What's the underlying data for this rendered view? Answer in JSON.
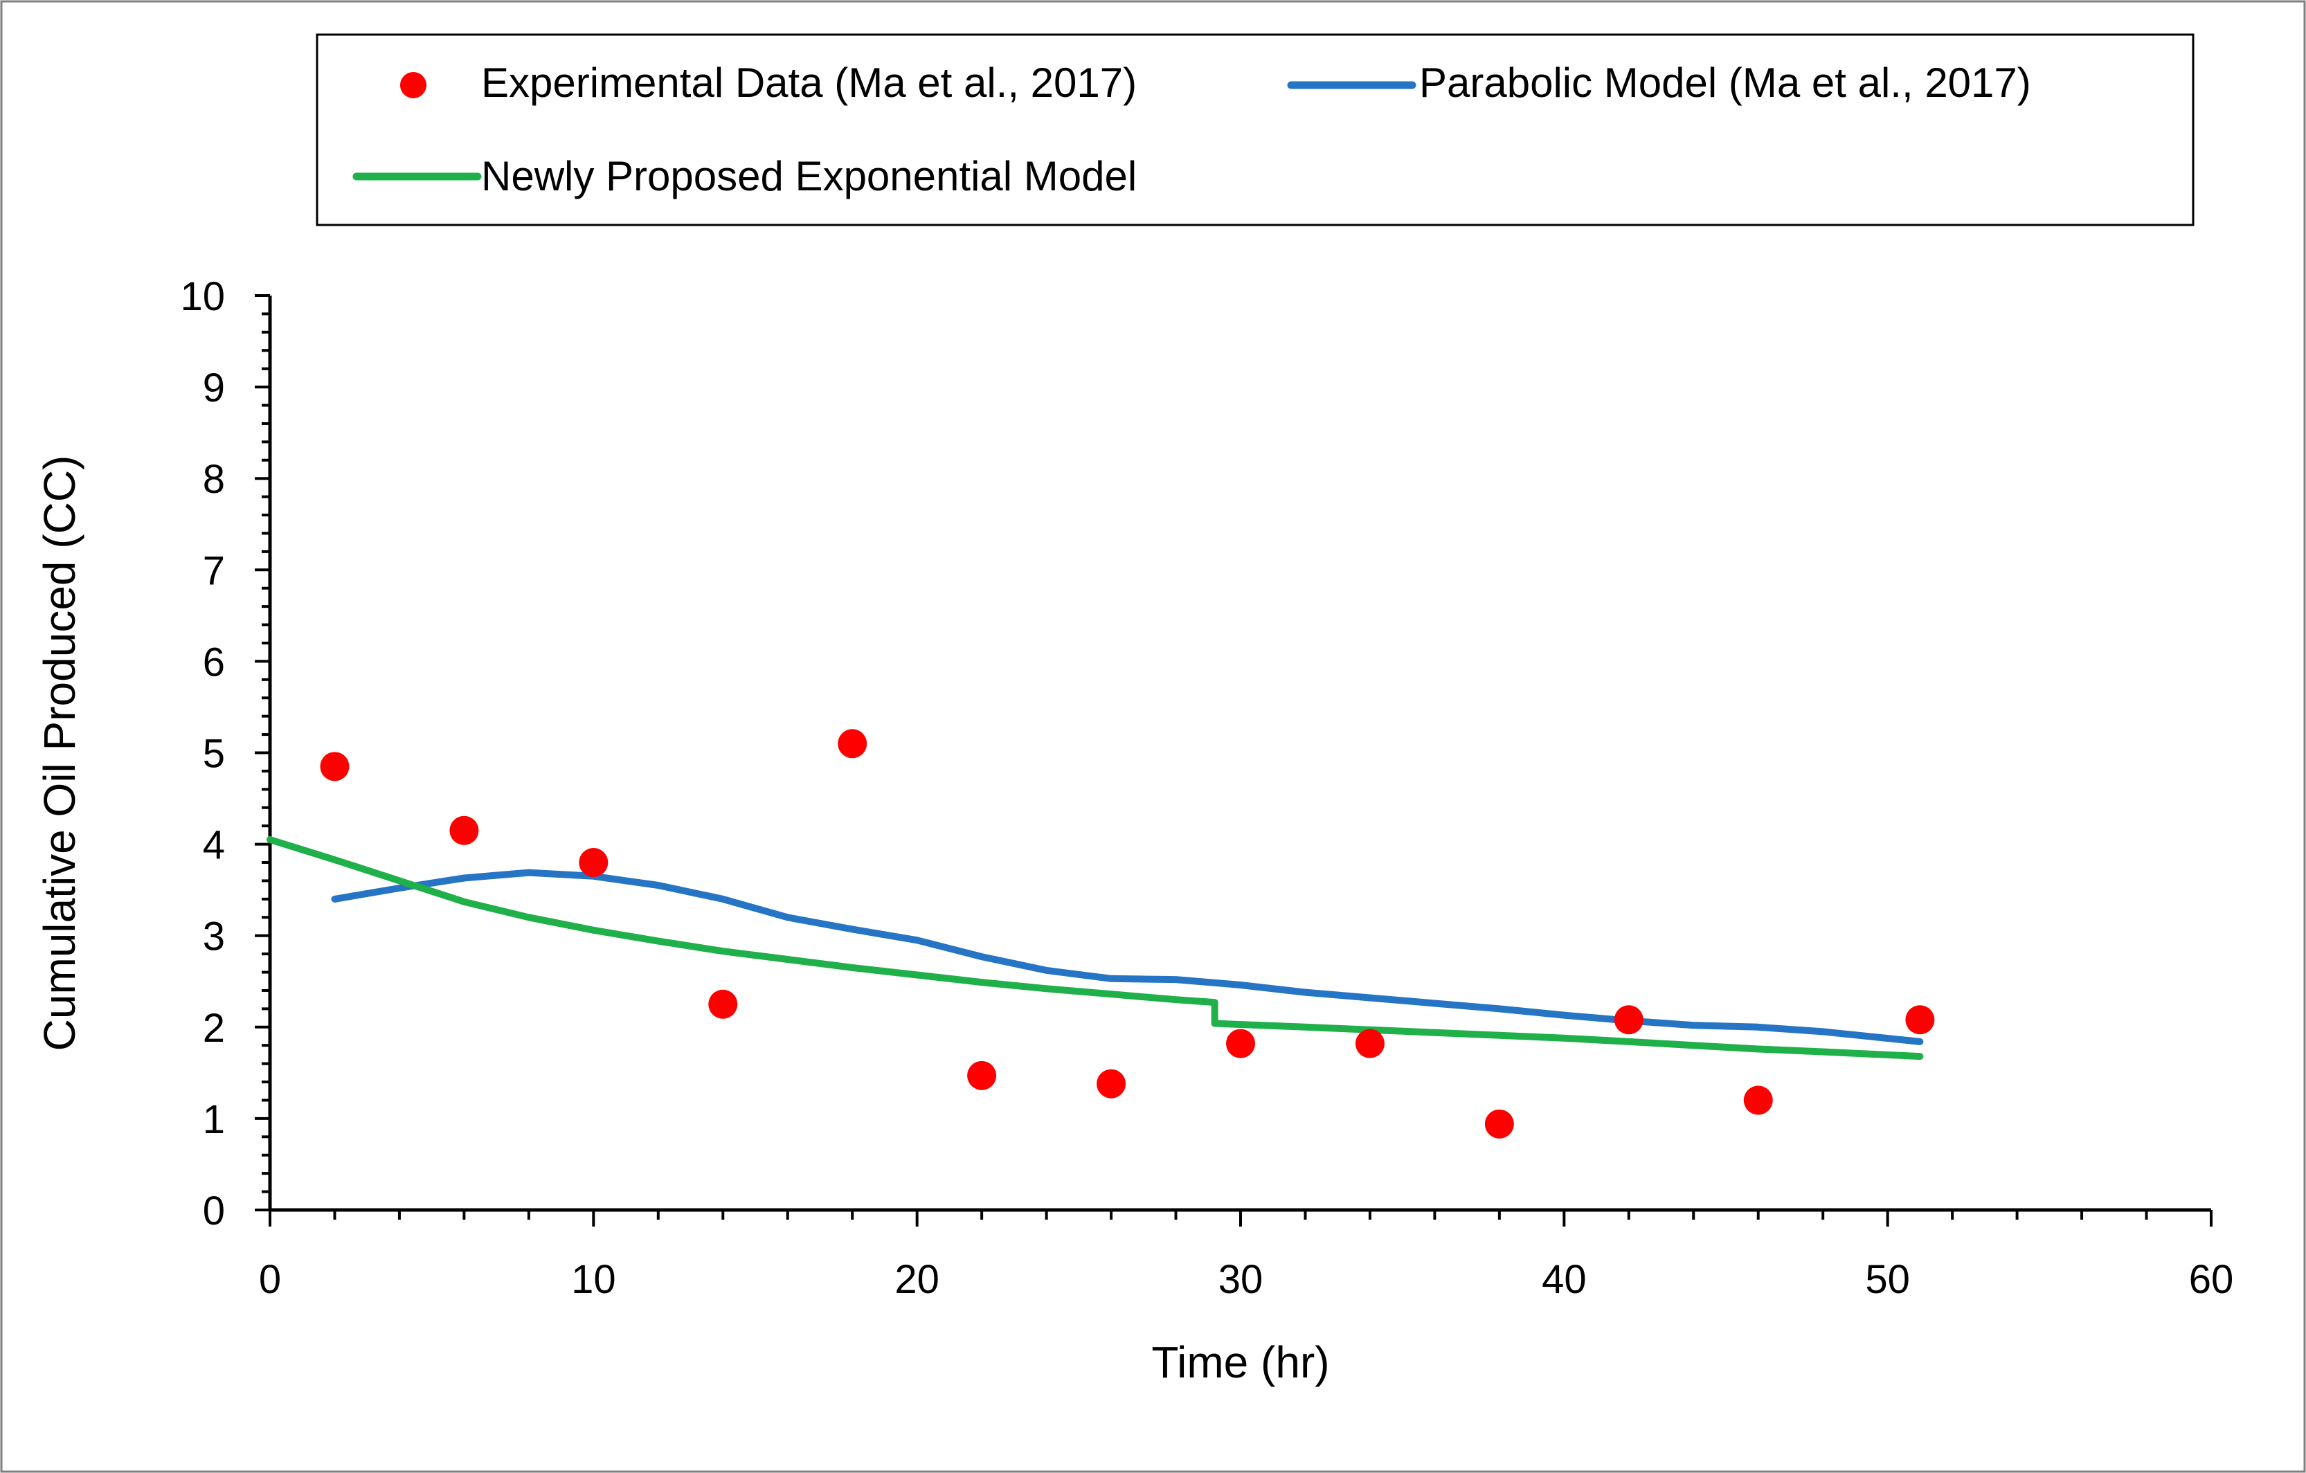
{
  "chart_data": {
    "type": "scatter",
    "title": "",
    "xlabel": "Time (hr)",
    "ylabel": "Cumulative Oil Produced (CC)",
    "xlim": [
      0,
      60
    ],
    "ylim": [
      0,
      10
    ],
    "x_ticks": [
      "0",
      "10",
      "20",
      "30",
      "40",
      "50",
      "60"
    ],
    "y_ticks": [
      "0",
      "1",
      "2",
      "3",
      "4",
      "5",
      "6",
      "7",
      "8",
      "9",
      "10"
    ],
    "grid": false,
    "legend_position": "top",
    "series": [
      {
        "name": "Experimental Data (Ma et al., 2017)",
        "kind": "scatter",
        "color": "#ff0000",
        "x": [
          2,
          6,
          10,
          14,
          18,
          22,
          26,
          30,
          34,
          38,
          42,
          46,
          51
        ],
        "y": [
          4.85,
          4.15,
          3.8,
          2.25,
          5.1,
          1.47,
          1.38,
          1.82,
          1.82,
          0.94,
          2.08,
          1.2,
          2.08
        ]
      },
      {
        "name": "Parabolic Model (Ma et al., 2017)",
        "kind": "line",
        "color": "#2675c5",
        "x": [
          2,
          4,
          6,
          8,
          10,
          12,
          14,
          16,
          18,
          20,
          22,
          24,
          26,
          28,
          30,
          32,
          34,
          36,
          38,
          40,
          42,
          44,
          46,
          48,
          51
        ],
        "y": [
          3.4,
          3.52,
          3.63,
          3.69,
          3.65,
          3.55,
          3.4,
          3.2,
          3.07,
          2.95,
          2.77,
          2.62,
          2.53,
          2.52,
          2.46,
          2.38,
          2.32,
          2.26,
          2.2,
          2.13,
          2.07,
          2.02,
          2.0,
          1.95,
          1.84
        ]
      },
      {
        "name": "Newly Proposed Exponential Model",
        "kind": "line",
        "color": "#1fb04a",
        "x": [
          0,
          2,
          4,
          6,
          8,
          10,
          12,
          14,
          16,
          18,
          20,
          22,
          24,
          26,
          28,
          29.2,
          29.2,
          32,
          34,
          36,
          38,
          40,
          42,
          44,
          46,
          48,
          51
        ],
        "y": [
          4.05,
          3.83,
          3.6,
          3.37,
          3.2,
          3.06,
          2.94,
          2.83,
          2.74,
          2.65,
          2.57,
          2.49,
          2.42,
          2.36,
          2.3,
          2.27,
          2.04,
          2.0,
          1.97,
          1.94,
          1.91,
          1.88,
          1.84,
          1.8,
          1.76,
          1.73,
          1.68
        ]
      }
    ]
  }
}
